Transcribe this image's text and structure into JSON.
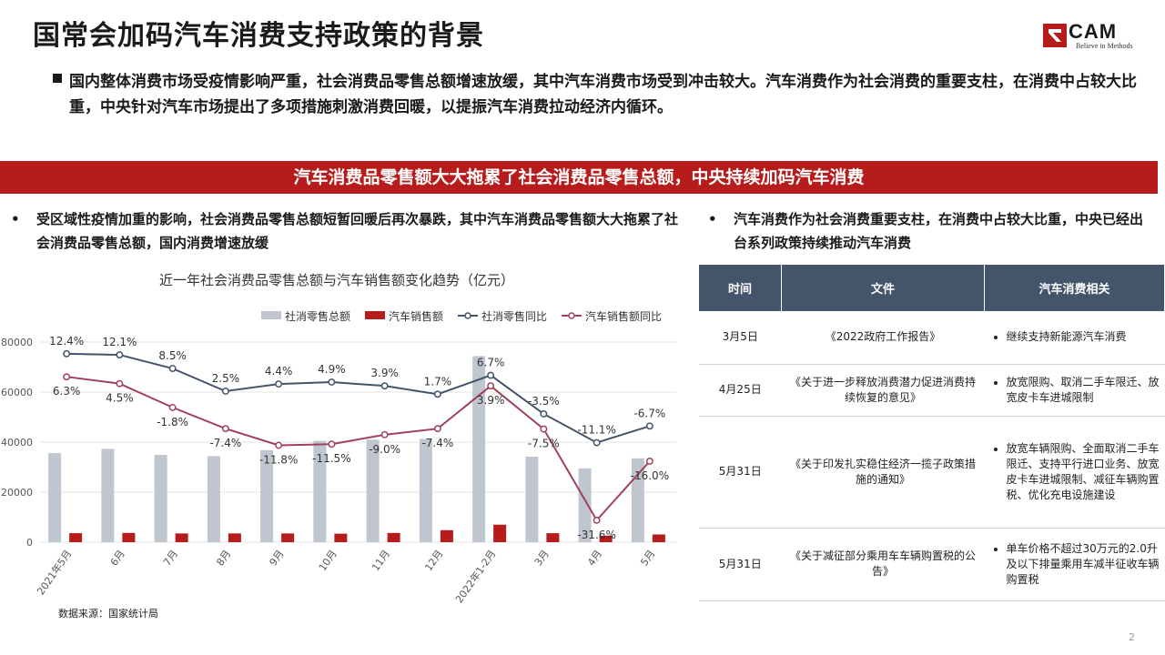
{
  "header": {
    "title": "国常会加码汽车消费支持政策的背景",
    "logo_text": "CAM",
    "logo_sub": "Believe in Methods"
  },
  "intro": "国内整体消费市场受疫情影响严重，社会消费品零售总额增速放缓，其中汽车消费市场受到冲击较大。汽车消费作为社会消费的重要支柱，在消费中占较大比重，中央针对汽车市场提出了多项措施刺激消费回暖，以提振汽车消费拉动经济内循环。",
  "banner": "汽车消费品零售额大大拖累了社会消费品零售总额，中央持续加码汽车消费",
  "left_bullet": {
    "dot": "•",
    "text": "受区域性疫情加重的影响，社会消费品零售总额短暂回暖后再次暴跌，其中汽车消费品零售额大大拖累了社会消费品零售总额，国内消费增速放缓"
  },
  "right_bullet": {
    "dot": "•",
    "text": "汽车消费作为社会消费重要支柱，在消费中占较大比重，中央已经出台系列政策持续推动汽车消费"
  },
  "chart_source": "数据来源：国家统计局",
  "chart_data": {
    "type": "bar+line",
    "title": "近一年社会消费品零售总额与汽车销售额变化趋势（亿元）",
    "categories": [
      "2021年5月",
      "6月",
      "7月",
      "8月",
      "9月",
      "10月",
      "11月",
      "12月",
      "2022年1-2月",
      "3月",
      "4月",
      "5月"
    ],
    "ylim": [
      0,
      80000
    ],
    "yticks": [
      "0",
      "20000",
      "40000",
      "60000",
      "80000"
    ],
    "legend_position": "top-right",
    "legend": [
      "社消零售总额",
      "汽车销售额",
      "社消零售同比",
      "汽车销售额同比"
    ],
    "bars": [
      {
        "name": "社消零售总额",
        "color": "#c0c6cf",
        "values": [
          35600,
          37300,
          34900,
          34400,
          36800,
          40500,
          41000,
          41300,
          74400,
          34200,
          29500,
          33500
        ]
      },
      {
        "name": "汽车销售额",
        "color": "#b71c1c",
        "values": [
          3600,
          3700,
          3500,
          3500,
          3500,
          3400,
          3700,
          4800,
          7000,
          3600,
          2600,
          3100
        ]
      }
    ],
    "lines": [
      {
        "name": "社消零售同比",
        "color": "#44546a",
        "labels": [
          "12.4%",
          "12.1%",
          "8.5%",
          "2.5%",
          "4.4%",
          "4.9%",
          "3.9%",
          "1.7%",
          "6.7%",
          "-3.5%",
          "-11.1%",
          "-6.7%"
        ],
        "pct": [
          12.4,
          12.1,
          8.5,
          2.5,
          4.4,
          4.9,
          3.9,
          1.7,
          6.7,
          -3.5,
          -11.1,
          -6.7
        ]
      },
      {
        "name": "汽车销售额同比",
        "color": "#a0405c",
        "labels": [
          "6.3%",
          "4.5%",
          "-1.8%",
          "-7.4%",
          "-11.8%",
          "-11.5%",
          "-9.0%",
          "-7.4%",
          "3.9%",
          "-7.5%",
          "-31.6%",
          "-16.0%"
        ],
        "pct": [
          6.3,
          4.5,
          -1.8,
          -7.4,
          -11.8,
          -11.5,
          -9.0,
          -7.4,
          3.9,
          -7.5,
          -31.6,
          -16.0
        ]
      }
    ]
  },
  "table": {
    "headers": [
      "时间",
      "文件",
      "汽车消费相关"
    ],
    "rows": [
      {
        "date": "3月5日",
        "doc": "《2022政府工作报告》",
        "items": [
          "继续支持新能源汽车消费"
        ]
      },
      {
        "date": "4月25日",
        "doc": "《关于进一步释放消费潜力促进消费持续恢复的意见》",
        "items": [
          "放宽限购、取消二手车限迁、放宽皮卡车进城限制"
        ]
      },
      {
        "date": "5月31日",
        "doc": "《关于印发扎实稳住经济一揽子政策措施的通知》",
        "items": [
          "放宽车辆限购、全面取消二手车限迁、支持平行进口业务、放宽皮卡车进城限制、减征车辆购置税、优化充电设施建设"
        ]
      },
      {
        "date": "5月31日",
        "doc": "《关于减征部分乘用车车辆购置税的公告》",
        "items": [
          "单车价格不超过30万元的2.0升及以下排量乘用车减半征收车辆购置税"
        ]
      }
    ]
  },
  "page_number": "2"
}
